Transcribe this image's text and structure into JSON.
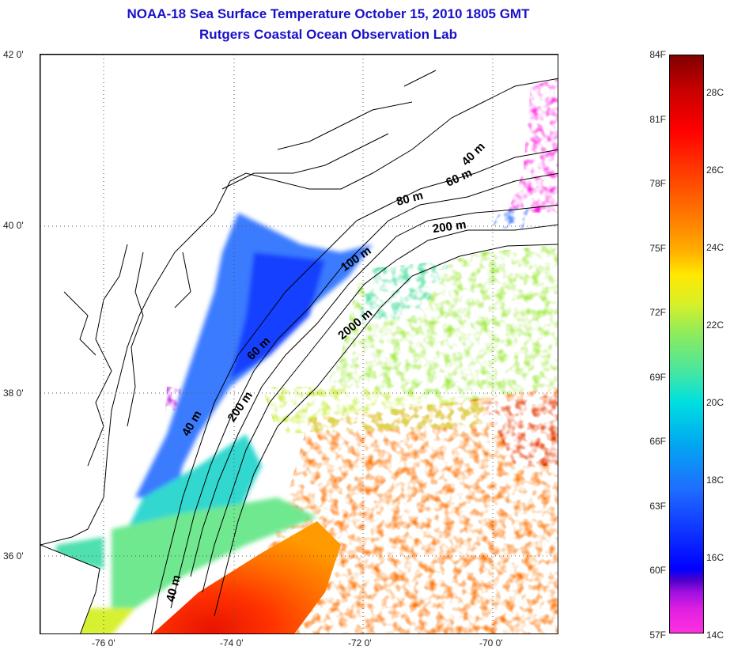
{
  "title": {
    "line1": "NOAA-18 Sea Surface Temperature October 15, 2010 1805 GMT",
    "line2": "Rutgers Coastal Ocean Observation Lab"
  },
  "map": {
    "lat_labels": [
      "42 0'",
      "40 0'",
      "38 0'",
      "36 0'"
    ],
    "lon_labels": [
      "-76 0'",
      "-74 0'",
      "-72 0'",
      "-70 0'"
    ],
    "depth_contours": [
      "40 m",
      "60 m",
      "80 m",
      "200 m",
      "100 m",
      "2000 m",
      "60 m",
      "200 m",
      "40 m",
      "40 m"
    ]
  },
  "colorbar": {
    "fahrenheit": [
      "84F",
      "81F",
      "78F",
      "75F",
      "72F",
      "69F",
      "66F",
      "63F",
      "60F",
      "57F"
    ],
    "celsius": [
      "28C",
      "26C",
      "24C",
      "22C",
      "20C",
      "18C",
      "16C",
      "14C"
    ]
  }
}
